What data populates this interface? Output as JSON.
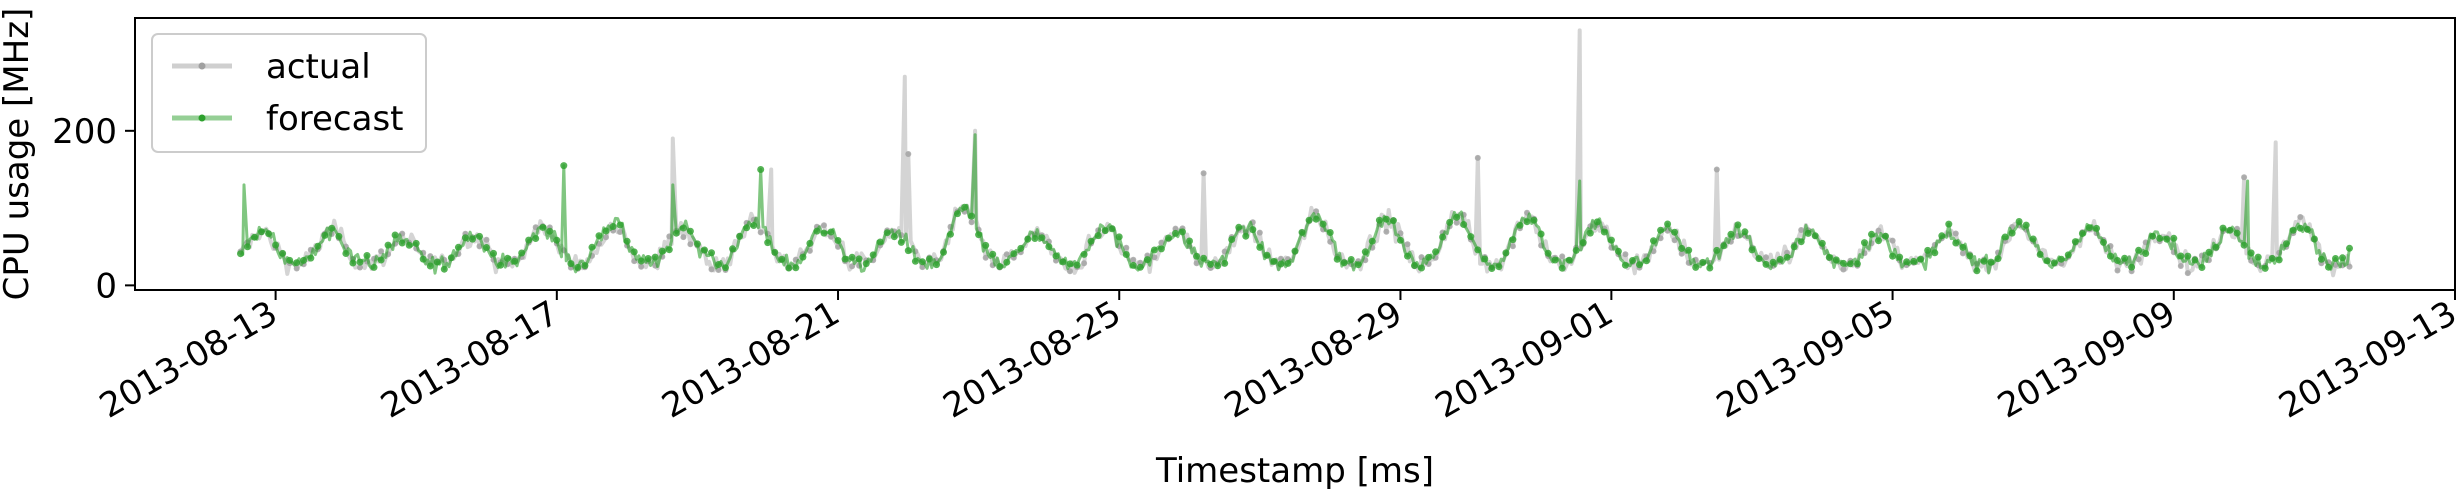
{
  "chart_data": {
    "type": "line",
    "title": "",
    "xlabel": "Timestamp [ms]",
    "ylabel": "CPU usage [MHz]",
    "x_start": "2013-08-12T12:00",
    "x_end": "2013-09-11T12:00",
    "xlim": [
      "2013-08-11T00:00",
      "2013-09-13T00:00"
    ],
    "ylim": [
      -6,
      346
    ],
    "x_ticks": [
      "2013-08-13",
      "2013-08-17",
      "2013-08-21",
      "2013-08-25",
      "2013-08-29",
      "2013-09-01",
      "2013-09-05",
      "2013-09-09",
      "2013-09-13"
    ],
    "y_ticks": [
      0,
      200
    ],
    "baseline": {
      "daily_peaks": [
        {
          "day": 0.3,
          "value": 70
        },
        {
          "day": 1.3,
          "value": 70
        },
        {
          "day": 2.3,
          "value": 60
        },
        {
          "day": 3.3,
          "value": 65
        },
        {
          "day": 4.3,
          "value": 75
        },
        {
          "day": 5.3,
          "value": 80
        },
        {
          "day": 6.3,
          "value": 75
        },
        {
          "day": 7.3,
          "value": 85
        },
        {
          "day": 8.3,
          "value": 75
        },
        {
          "day": 9.3,
          "value": 70
        },
        {
          "day": 10.3,
          "value": 100
        },
        {
          "day": 11.3,
          "value": 65
        },
        {
          "day": 12.3,
          "value": 75
        },
        {
          "day": 13.3,
          "value": 70
        },
        {
          "day": 14.3,
          "value": 75
        },
        {
          "day": 15.3,
          "value": 90
        },
        {
          "day": 16.3,
          "value": 85
        },
        {
          "day": 17.3,
          "value": 90
        },
        {
          "day": 18.3,
          "value": 90
        },
        {
          "day": 19.3,
          "value": 80
        },
        {
          "day": 20.3,
          "value": 70
        },
        {
          "day": 21.3,
          "value": 70
        },
        {
          "day": 22.3,
          "value": 70
        },
        {
          "day": 23.3,
          "value": 65
        },
        {
          "day": 24.3,
          "value": 65
        },
        {
          "day": 25.3,
          "value": 80
        },
        {
          "day": 26.3,
          "value": 75
        },
        {
          "day": 27.3,
          "value": 70
        },
        {
          "day": 28.3,
          "value": 75
        },
        {
          "day": 29.3,
          "value": 80
        }
      ],
      "daily_low": 28
    },
    "series": [
      {
        "name": "actual",
        "color": "#a0a0a0",
        "spikes": [
          {
            "day": 6.15,
            "value": 190
          },
          {
            "day": 7.55,
            "value": 150
          },
          {
            "day": 9.45,
            "value": 270
          },
          {
            "day": 9.5,
            "value": 170
          },
          {
            "day": 10.45,
            "value": 200
          },
          {
            "day": 13.7,
            "value": 145
          },
          {
            "day": 17.6,
            "value": 165
          },
          {
            "day": 19.05,
            "value": 330
          },
          {
            "day": 21.0,
            "value": 150
          },
          {
            "day": 28.95,
            "value": 185
          },
          {
            "day": 28.5,
            "value": 140
          }
        ]
      },
      {
        "name": "forecast",
        "color": "#2ca02c",
        "spikes": [
          {
            "day": 0.05,
            "value": 130
          },
          {
            "day": 4.6,
            "value": 155
          },
          {
            "day": 6.15,
            "value": 130
          },
          {
            "day": 7.4,
            "value": 150
          },
          {
            "day": 10.45,
            "value": 195
          },
          {
            "day": 19.05,
            "value": 135
          },
          {
            "day": 28.55,
            "value": 135
          }
        ]
      }
    ],
    "legend": {
      "position": "top-left",
      "entries": [
        "actual",
        "forecast"
      ]
    }
  }
}
